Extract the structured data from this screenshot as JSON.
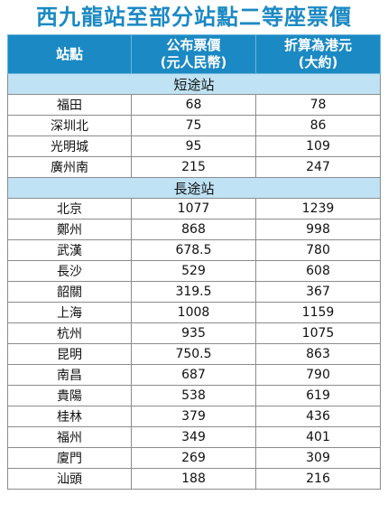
{
  "title": "西九龍站至部分站點二等座票價",
  "table": {
    "headers": [
      {
        "line1": "站點",
        "line2": ""
      },
      {
        "line1": "公布票價",
        "line2": "(元人民幣)"
      },
      {
        "line1": "折算為港元",
        "line2": "(大約)"
      }
    ],
    "sections": [
      {
        "label": "短途站",
        "rows": [
          {
            "station": "福田",
            "rmb": "68",
            "hkd": "78"
          },
          {
            "station": "深圳北",
            "rmb": "75",
            "hkd": "86"
          },
          {
            "station": "光明城",
            "rmb": "95",
            "hkd": "109"
          },
          {
            "station": "廣州南",
            "rmb": "215",
            "hkd": "247"
          }
        ]
      },
      {
        "label": "長途站",
        "rows": [
          {
            "station": "北京",
            "rmb": "1077",
            "hkd": "1239"
          },
          {
            "station": "鄭州",
            "rmb": "868",
            "hkd": "998"
          },
          {
            "station": "武漢",
            "rmb": "678.5",
            "hkd": "780"
          },
          {
            "station": "長沙",
            "rmb": "529",
            "hkd": "608"
          },
          {
            "station": "韶關",
            "rmb": "319.5",
            "hkd": "367"
          },
          {
            "station": "上海",
            "rmb": "1008",
            "hkd": "1159"
          },
          {
            "station": "杭州",
            "rmb": "935",
            "hkd": "1075"
          },
          {
            "station": "昆明",
            "rmb": "750.5",
            "hkd": "863"
          },
          {
            "station": "南昌",
            "rmb": "687",
            "hkd": "790"
          },
          {
            "station": "貴陽",
            "rmb": "538",
            "hkd": "619"
          },
          {
            "station": "桂林",
            "rmb": "379",
            "hkd": "436"
          },
          {
            "station": "福州",
            "rmb": "349",
            "hkd": "401"
          },
          {
            "station": "廈門",
            "rmb": "269",
            "hkd": "309"
          },
          {
            "station": "汕頭",
            "rmb": "188",
            "hkd": "216"
          }
        ]
      }
    ]
  },
  "colors": {
    "header_bg": "#1b89c3",
    "section_bg": "#bfe2f4",
    "title_text": "#1b89c3"
  }
}
